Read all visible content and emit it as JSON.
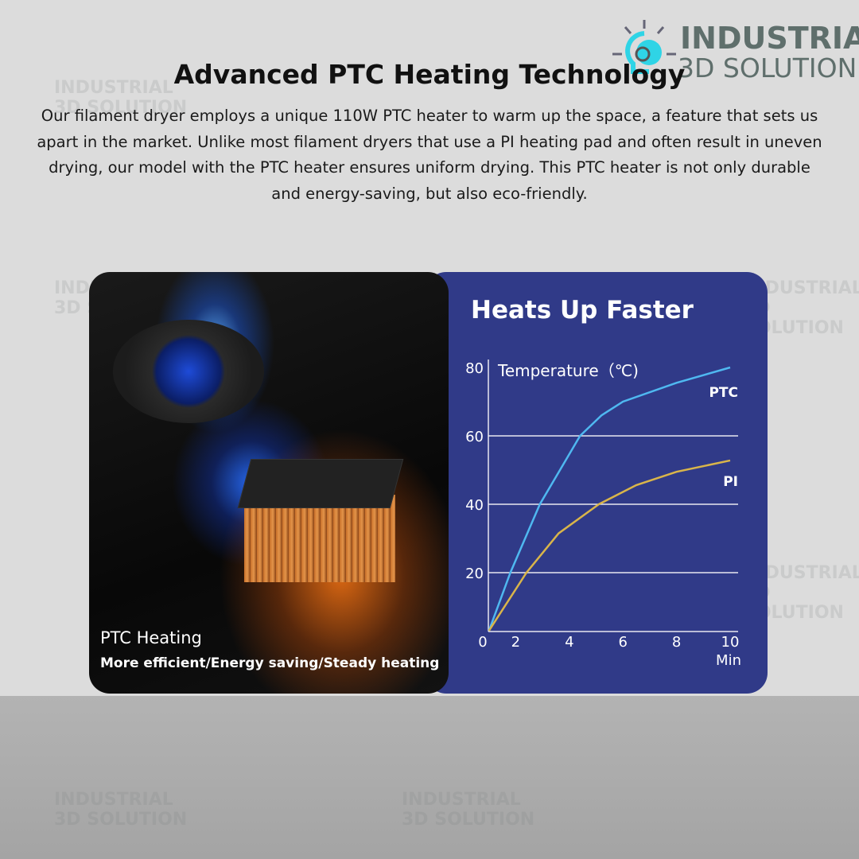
{
  "header": {
    "title": "Advanced PTC Heating Technology",
    "description": "Our filament dryer employs a unique 110W PTC heater to warm up the space, a feature that sets us apart in the market. Unlike most filament dryers that use a PI heating pad and often result in uneven drying, our model with the PTC heater ensures uniform drying. This PTC heater is not only durable and energy-saving, but also eco-friendly."
  },
  "logo": {
    "line1": "INDUSTRIAL",
    "line2": "3D SOLUTION",
    "icon": "lightbulb-gear-icon"
  },
  "left_card": {
    "label": "PTC Heating",
    "sublabel": "More efficient/Energy saving/Steady heating"
  },
  "chart_data": {
    "type": "line",
    "title": "Heats Up Faster",
    "ylabel": "Temperature（℃)",
    "xlabel": "Min",
    "xticks": [
      0,
      2,
      4,
      6,
      8,
      10
    ],
    "yticks": [
      20,
      40,
      60,
      80
    ],
    "xlim": [
      0,
      10
    ],
    "ylim": [
      0,
      80
    ],
    "grid": "horizontal",
    "series": [
      {
        "name": "PTC",
        "color": "#4fb8f0",
        "x": [
          1,
          1.8,
          2.9,
          3.5,
          4.4,
          5.2,
          6,
          8,
          10
        ],
        "y": [
          3,
          20,
          40,
          48,
          60,
          66,
          70,
          75.5,
          80
        ]
      },
      {
        "name": "PI",
        "color": "#d9b54a",
        "x": [
          1,
          2.4,
          3.6,
          5.1,
          6.5,
          8,
          10
        ],
        "y": [
          3,
          20,
          31.5,
          40,
          45.6,
          49.5,
          52.8
        ]
      }
    ]
  },
  "colors": {
    "chart_bg": "#303a88",
    "page_bg": "#dcdcdc"
  }
}
